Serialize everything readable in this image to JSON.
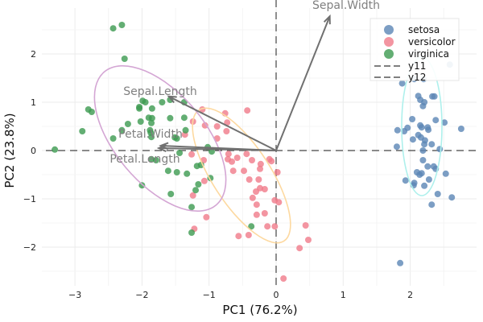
{
  "chart_data": {
    "type": "scatter",
    "title": "",
    "xlabel": "PC1 (76.2%)",
    "ylabel": "PC2 (23.8%)",
    "xlim": [
      -3.45,
      2.95
    ],
    "ylim": [
      -2.8,
      2.95
    ],
    "xticks": [
      -3,
      -2,
      -1,
      0,
      1,
      2
    ],
    "yticks": [
      -2,
      -1,
      0,
      1,
      2
    ],
    "grid": true,
    "legend_position": "top-right",
    "legend": [
      "setosa",
      "versicolor",
      "virginica",
      "y11",
      "y12"
    ],
    "series": [
      {
        "name": "setosa",
        "color": "#5b86b5",
        "points": [
          [
            1.88,
            1.39
          ],
          [
            2.06,
            1.48
          ],
          [
            2.2,
            1.48
          ],
          [
            2.59,
            1.78
          ],
          [
            2.12,
            1.13
          ],
          [
            2.15,
            1.05
          ],
          [
            2.21,
            1.0
          ],
          [
            2.19,
            0.92
          ],
          [
            2.33,
            1.12
          ],
          [
            2.36,
            1.12
          ],
          [
            2.03,
            0.65
          ],
          [
            2.38,
            0.63
          ],
          [
            2.51,
            0.58
          ],
          [
            1.81,
            0.42
          ],
          [
            1.91,
            0.4
          ],
          [
            1.96,
            0.47
          ],
          [
            2.15,
            0.52
          ],
          [
            2.17,
            0.48
          ],
          [
            2.26,
            0.48
          ],
          [
            2.27,
            0.43
          ],
          [
            2.76,
            0.45
          ],
          [
            2.12,
            0.32
          ],
          [
            2.16,
            0.27
          ],
          [
            2.04,
            0.23
          ],
          [
            2.22,
            0.21
          ],
          [
            2.21,
            0.13
          ],
          [
            2.32,
            0.13
          ],
          [
            1.8,
            0.08
          ],
          [
            2.19,
            0.0
          ],
          [
            2.44,
            0.03
          ],
          [
            2.19,
            -0.2
          ],
          [
            2.26,
            -0.33
          ],
          [
            2.35,
            -0.33
          ],
          [
            2.38,
            -0.38
          ],
          [
            2.1,
            -0.45
          ],
          [
            2.14,
            -0.5
          ],
          [
            2.17,
            -0.47
          ],
          [
            2.53,
            -0.48
          ],
          [
            1.93,
            -0.62
          ],
          [
            2.28,
            -0.6
          ],
          [
            2.06,
            -0.67
          ],
          [
            2.05,
            -0.72
          ],
          [
            2.21,
            -0.73
          ],
          [
            2.41,
            -0.9
          ],
          [
            2.62,
            -0.97
          ],
          [
            2.32,
            -1.12
          ],
          [
            1.85,
            -2.33
          ]
        ]
      },
      {
        "name": "versicolor",
        "color": "#f07a8a",
        "points": [
          [
            -1.1,
            0.85
          ],
          [
            -0.76,
            0.77
          ],
          [
            -0.43,
            0.83
          ],
          [
            -1.24,
            0.6
          ],
          [
            -1.06,
            0.52
          ],
          [
            -0.88,
            0.5
          ],
          [
            -0.73,
            0.58
          ],
          [
            -0.74,
            0.4
          ],
          [
            -1.36,
            0.33
          ],
          [
            -0.88,
            0.25
          ],
          [
            -1.26,
            -0.08
          ],
          [
            -1.08,
            -0.2
          ],
          [
            -0.71,
            -0.07
          ],
          [
            -0.72,
            -0.18
          ],
          [
            -0.66,
            -0.23
          ],
          [
            -0.58,
            -0.15
          ],
          [
            -0.44,
            -0.07
          ],
          [
            -0.36,
            -0.2
          ],
          [
            -0.23,
            -0.28
          ],
          [
            -0.24,
            -0.38
          ],
          [
            -0.1,
            -0.18
          ],
          [
            -0.07,
            -0.22
          ],
          [
            -0.64,
            -0.42
          ],
          [
            -0.48,
            -0.42
          ],
          [
            0.02,
            -0.45
          ],
          [
            -0.4,
            -0.6
          ],
          [
            -0.26,
            -0.6
          ],
          [
            -1.07,
            -0.63
          ],
          [
            -0.24,
            -0.78
          ],
          [
            -0.17,
            -0.8
          ],
          [
            -0.3,
            -0.85
          ],
          [
            -1.24,
            -0.93
          ],
          [
            -0.35,
            -0.98
          ],
          [
            -0.02,
            -1.03
          ],
          [
            0.04,
            -1.07
          ],
          [
            -0.29,
            -1.12
          ],
          [
            -0.17,
            -1.3
          ],
          [
            -0.29,
            -1.33
          ],
          [
            -1.04,
            -1.38
          ],
          [
            0.44,
            -1.55
          ],
          [
            -0.13,
            -1.57
          ],
          [
            -0.02,
            -1.57
          ],
          [
            -1.22,
            -1.62
          ],
          [
            -0.56,
            -1.77
          ],
          [
            -0.41,
            -1.75
          ],
          [
            0.48,
            -1.85
          ],
          [
            0.35,
            -2.02
          ],
          [
            0.11,
            -2.65
          ]
        ]
      },
      {
        "name": "virginica",
        "color": "#3c9a50",
        "points": [
          [
            -2.43,
            2.53
          ],
          [
            -2.3,
            2.6
          ],
          [
            -2.26,
            1.9
          ],
          [
            -1.99,
            1.03
          ],
          [
            -1.95,
            1.0
          ],
          [
            -1.7,
            1.0
          ],
          [
            -1.58,
            1.05
          ],
          [
            -1.37,
            1.0
          ],
          [
            -2.8,
            0.85
          ],
          [
            -2.75,
            0.8
          ],
          [
            -2.04,
            0.9
          ],
          [
            -2.04,
            0.87
          ],
          [
            -1.85,
            0.87
          ],
          [
            -1.9,
            0.68
          ],
          [
            -1.85,
            0.67
          ],
          [
            -1.58,
            0.67
          ],
          [
            -1.37,
            0.68
          ],
          [
            -2.02,
            0.6
          ],
          [
            -1.86,
            0.57
          ],
          [
            -2.21,
            0.55
          ],
          [
            -2.89,
            0.4
          ],
          [
            -2.3,
            0.42
          ],
          [
            -1.88,
            0.42
          ],
          [
            -1.87,
            0.37
          ],
          [
            -1.35,
            0.42
          ],
          [
            -1.86,
            0.28
          ],
          [
            -2.43,
            0.25
          ],
          [
            -1.51,
            0.27
          ],
          [
            -1.48,
            0.25
          ],
          [
            -3.3,
            0.02
          ],
          [
            -1.44,
            -0.05
          ],
          [
            -1.02,
            0.07
          ],
          [
            -0.96,
            -0.02
          ],
          [
            -1.86,
            -0.18
          ],
          [
            -1.79,
            -0.2
          ],
          [
            -1.61,
            -0.42
          ],
          [
            -1.48,
            -0.45
          ],
          [
            -1.33,
            -0.48
          ],
          [
            -2.0,
            -0.72
          ],
          [
            -1.57,
            -0.9
          ],
          [
            -0.98,
            -0.57
          ],
          [
            -1.18,
            -0.32
          ],
          [
            -1.12,
            -0.3
          ],
          [
            -1.16,
            -0.7
          ],
          [
            -1.2,
            -0.82
          ],
          [
            -1.26,
            -1.17
          ],
          [
            -1.26,
            -1.7
          ],
          [
            -0.37,
            -1.57
          ]
        ]
      }
    ],
    "loadings": [
      {
        "name": "Sepal.Width",
        "x": 0.8,
        "y": 2.78
      },
      {
        "name": "Sepal.Length",
        "x": -1.6,
        "y": 1.12
      },
      {
        "name": "Petal.Width",
        "x": -1.72,
        "y": 0.1
      },
      {
        "name": "Petal.Length",
        "x": -1.75,
        "y": 0.05
      }
    ],
    "reference_lines": [
      {
        "name": "y11",
        "type": "hline",
        "value": 0
      },
      {
        "name": "y12",
        "type": "vline",
        "value": 0
      }
    ],
    "ellipse_colors": {
      "setosa": "#aef0ec",
      "versicolor": "#fdd9a0",
      "virginica": "#d4a6d4"
    }
  }
}
